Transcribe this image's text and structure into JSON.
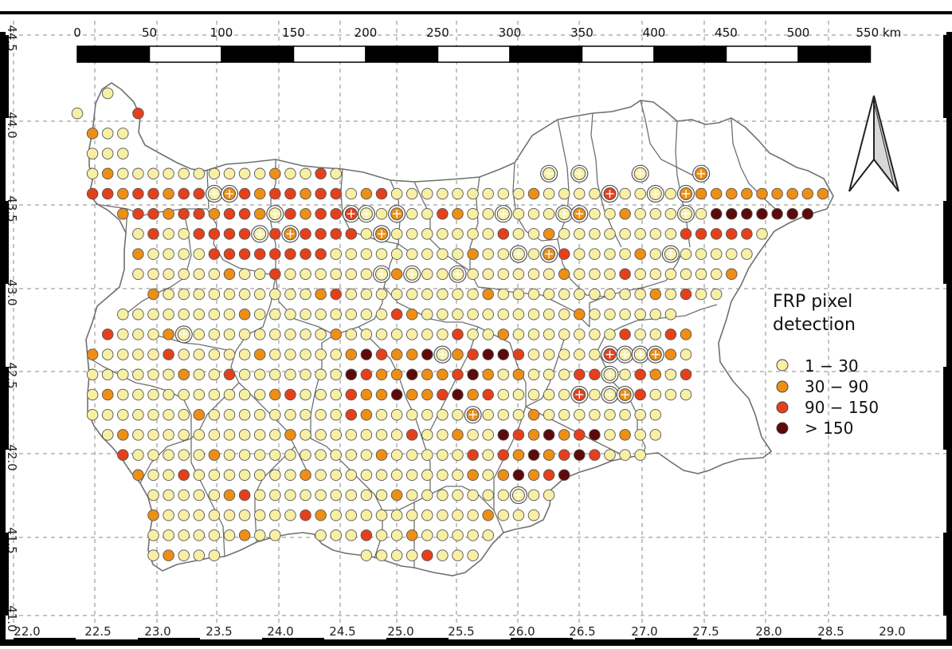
{
  "map": {
    "axes": {
      "x_ticks": [
        "22.0",
        "22.5",
        "23.0",
        "23.5",
        "24.0",
        "24.5",
        "25.0",
        "25.5",
        "26.0",
        "26.5",
        "27.0",
        "27.5",
        "28.0",
        "28.5",
        "29.0"
      ],
      "y_ticks": [
        "44.5",
        "44.0",
        "43.5",
        "43.0",
        "42.5",
        "42.0",
        "41.5",
        "41.0"
      ]
    },
    "scalebar": {
      "labels": [
        "0",
        "50",
        "100",
        "150",
        "200",
        "250",
        "300",
        "350",
        "400",
        "450",
        "500",
        "550 km"
      ]
    },
    "legend": {
      "title_line1": "FRP pixel",
      "title_line2": "detection",
      "items": [
        {
          "label": "1 − 30",
          "color": "#f7f0a4"
        },
        {
          "label": "30 − 90",
          "color": "#ee8f15"
        },
        {
          "label": "90 − 150",
          "color": "#e5401c"
        },
        {
          "label": ">     150",
          "color": "#5c0a0a"
        }
      ]
    },
    "colors": {
      "c1": "#f7f0a4",
      "c2": "#ee8f15",
      "c3": "#e5401c",
      "c4": "#5c0a0a",
      "border": "#666666",
      "grid": "#8a8a8a"
    }
  }
}
